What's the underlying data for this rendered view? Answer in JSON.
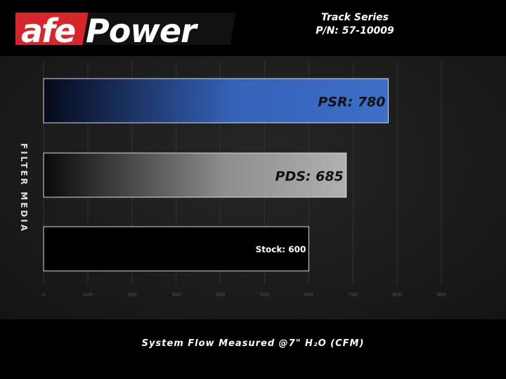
{
  "brand": {
    "logo_text": "afePower",
    "colors": {
      "red": "#d7262b",
      "white": "#ffffff"
    }
  },
  "header": {
    "line1": "Track Series",
    "line2": "P/N: 57-10009"
  },
  "chart_data": {
    "type": "bar",
    "orientation": "horizontal",
    "categories": [
      "PSR",
      "PDS",
      "Stock"
    ],
    "values": [
      780,
      685,
      600
    ],
    "data_labels": [
      "PSR: 780",
      "PDS: 685",
      "Stock: 600"
    ],
    "title": "",
    "xlabel": "System Flow Measured @7\" H₂O (CFM)",
    "ylabel": "FILTER MEDIA",
    "xlim": [
      0,
      900
    ],
    "xticks": [
      "0",
      "100",
      "200",
      "300",
      "400",
      "500",
      "600",
      "700",
      "800",
      "900"
    ],
    "grid": true,
    "colors": [
      "#3a6bc4",
      "#a8a8a8",
      "#000000"
    ]
  }
}
